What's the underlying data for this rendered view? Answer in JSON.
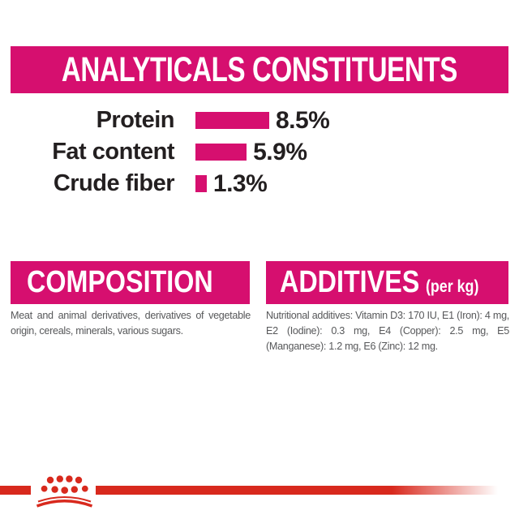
{
  "colors": {
    "magenta": "#d60f6f",
    "red": "#d8291d",
    "text_dark": "#231f20",
    "text_gray": "#57585a"
  },
  "analyticals": {
    "title": "ANALYTICALS CONSTITUENTS"
  },
  "chart_data": {
    "type": "bar",
    "orientation": "horizontal",
    "title": "ANALYTICALS CONSTITUENTS",
    "categories": [
      "Protein",
      "Fat content",
      "Crude fiber"
    ],
    "values": [
      8.5,
      5.9,
      1.3
    ],
    "value_labels": [
      "8.5%",
      "5.9%",
      "1.3%"
    ],
    "unit": "%",
    "xlim": [
      0,
      10
    ],
    "bar_color": "#d60f6f",
    "grid": false,
    "legend": false
  },
  "composition": {
    "title": "COMPOSITION",
    "body": "Meat and animal derivatives, derivatives of vegetable origin, cereals, minerals, various sugars."
  },
  "additives": {
    "title": "ADDITIVES",
    "title_suffix": "(per kg)",
    "body": "Nutritional additives: Vitamin D3: 170 IU, E1 (Iron): 4 mg, E2 (Iodine): 0.3 mg, E4 (Copper): 2.5 mg, E5 (Manganese): 1.2 mg, E6 (Zinc): 12 mg."
  },
  "footer": {
    "logo": "royal-canin-crown"
  }
}
